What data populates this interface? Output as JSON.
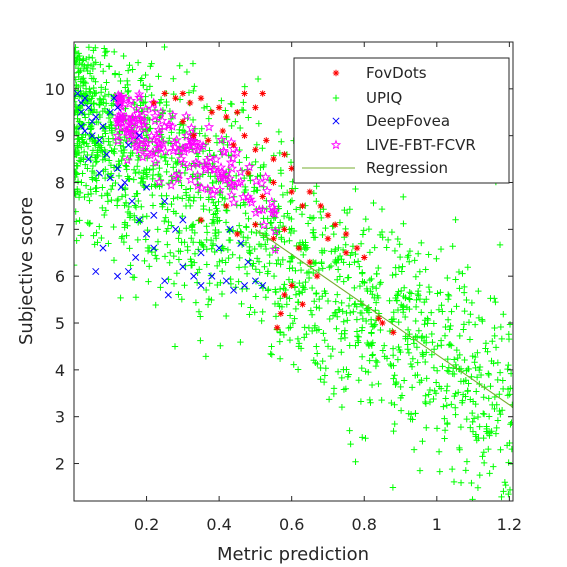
{
  "chart_data": {
    "type": "scatter",
    "xlabel": "Metric prediction",
    "ylabel": "Subjective score",
    "xlim": [
      0,
      1.21
    ],
    "ylim": [
      1.2,
      11.0
    ],
    "x_ticks": [
      0.2,
      0.4,
      0.6,
      0.8,
      1,
      1.2
    ],
    "y_ticks": [
      2,
      3,
      4,
      5,
      6,
      7,
      8,
      9,
      10
    ],
    "grid": false,
    "legend_position": "top-right",
    "series": [
      {
        "name": "FovDots",
        "marker": "asterisk",
        "color": "#ff0000",
        "points": [
          [
            0.25,
            9.9
          ],
          [
            0.28,
            9.8
          ],
          [
            0.3,
            9.9
          ],
          [
            0.32,
            9.7
          ],
          [
            0.35,
            9.8
          ],
          [
            0.38,
            9.5
          ],
          [
            0.4,
            9.6
          ],
          [
            0.42,
            9.4
          ],
          [
            0.45,
            9.5
          ],
          [
            0.47,
            9.9
          ],
          [
            0.5,
            9.6
          ],
          [
            0.52,
            9.9
          ],
          [
            0.3,
            9.3
          ],
          [
            0.33,
            9.0
          ],
          [
            0.37,
            8.9
          ],
          [
            0.41,
            9.1
          ],
          [
            0.44,
            8.8
          ],
          [
            0.47,
            9.0
          ],
          [
            0.5,
            8.7
          ],
          [
            0.53,
            8.9
          ],
          [
            0.55,
            8.5
          ],
          [
            0.58,
            8.6
          ],
          [
            0.6,
            8.3
          ],
          [
            0.62,
            8.4
          ],
          [
            0.65,
            7.8
          ],
          [
            0.68,
            7.5
          ],
          [
            0.7,
            7.3
          ],
          [
            0.72,
            7.1
          ],
          [
            0.75,
            6.9
          ],
          [
            0.78,
            6.6
          ],
          [
            0.8,
            6.4
          ],
          [
            0.6,
            7.8
          ],
          [
            0.63,
            7.5
          ],
          [
            0.58,
            7.0
          ],
          [
            0.55,
            6.8
          ],
          [
            0.62,
            6.6
          ],
          [
            0.65,
            6.3
          ],
          [
            0.67,
            6.0
          ],
          [
            0.6,
            5.8
          ],
          [
            0.58,
            5.6
          ],
          [
            0.57,
            5.2
          ],
          [
            0.56,
            4.9
          ],
          [
            0.85,
            5.0
          ],
          [
            0.88,
            4.8
          ],
          [
            0.84,
            5.1
          ],
          [
            0.35,
            7.2
          ],
          [
            0.45,
            6.9
          ],
          [
            0.5,
            7.1
          ],
          [
            0.42,
            7.5
          ],
          [
            0.48,
            8.2
          ],
          [
            0.52,
            7.7
          ],
          [
            0.7,
            6.8
          ],
          [
            0.75,
            6.5
          ],
          [
            0.55,
            8.0
          ],
          [
            0.63,
            5.4
          ],
          [
            0.22,
            9.7
          ]
        ]
      },
      {
        "name": "UPIQ",
        "marker": "plus",
        "color": "#00ff00",
        "seed": 7,
        "count": 1800,
        "trend": {
          "intercept": 9.55,
          "slope": -5.2,
          "spread": 1.2
        },
        "x_range": [
          0,
          1.21
        ],
        "y_clip": [
          1.2,
          10.9
        ]
      },
      {
        "name": "DeepFovea",
        "marker": "x",
        "color": "#0000ff",
        "points": [
          [
            0.01,
            9.9
          ],
          [
            0.02,
            9.7
          ],
          [
            0.03,
            9.8
          ],
          [
            0.02,
            9.5
          ],
          [
            0.04,
            9.6
          ],
          [
            0.05,
            9.3
          ],
          [
            0.06,
            9.4
          ],
          [
            0.03,
            9.1
          ],
          [
            0.05,
            9.0
          ],
          [
            0.07,
            8.9
          ],
          [
            0.08,
            9.2
          ],
          [
            0.1,
            9.5
          ],
          [
            0.11,
            9.8
          ],
          [
            0.09,
            8.6
          ],
          [
            0.12,
            8.3
          ],
          [
            0.14,
            8.0
          ],
          [
            0.1,
            8.1
          ],
          [
            0.13,
            7.9
          ],
          [
            0.16,
            7.6
          ],
          [
            0.18,
            7.2
          ],
          [
            0.2,
            6.9
          ],
          [
            0.22,
            6.6
          ],
          [
            0.15,
            6.1
          ],
          [
            0.12,
            6.0
          ],
          [
            0.06,
            6.1
          ],
          [
            0.08,
            6.6
          ],
          [
            0.17,
            6.4
          ],
          [
            0.25,
            5.9
          ],
          [
            0.26,
            5.6
          ],
          [
            0.3,
            6.2
          ],
          [
            0.33,
            6.0
          ],
          [
            0.35,
            5.8
          ],
          [
            0.38,
            6.0
          ],
          [
            0.42,
            5.9
          ],
          [
            0.44,
            5.7
          ],
          [
            0.47,
            5.8
          ],
          [
            0.5,
            5.9
          ],
          [
            0.52,
            5.8
          ],
          [
            0.4,
            6.6
          ],
          [
            0.43,
            7.0
          ],
          [
            0.46,
            6.7
          ],
          [
            0.3,
            7.2
          ],
          [
            0.25,
            7.6
          ],
          [
            0.2,
            7.9
          ],
          [
            0.04,
            8.5
          ],
          [
            0.07,
            8.2
          ],
          [
            0.02,
            9.2
          ],
          [
            0.15,
            8.8
          ],
          [
            0.18,
            9.0
          ],
          [
            0.12,
            9.6
          ],
          [
            0.22,
            7.3
          ],
          [
            0.28,
            7.0
          ],
          [
            0.35,
            6.5
          ],
          [
            0.48,
            6.3
          ]
        ]
      },
      {
        "name": "LIVE-FBT-FCVR",
        "marker": "star",
        "color": "#ff00ff",
        "seed": 11,
        "count": 190,
        "trend": {
          "intercept": 10.25,
          "slope": -5.2,
          "spread": 0.4
        },
        "x_range": [
          0.12,
          0.56
        ],
        "y_clip": [
          6.2,
          9.9
        ]
      },
      {
        "name": "Regression",
        "marker": "line",
        "color": "#77ac30",
        "line_from": [
          0.5,
          7.0
        ],
        "line_to": [
          1.21,
          3.2
        ]
      }
    ]
  }
}
